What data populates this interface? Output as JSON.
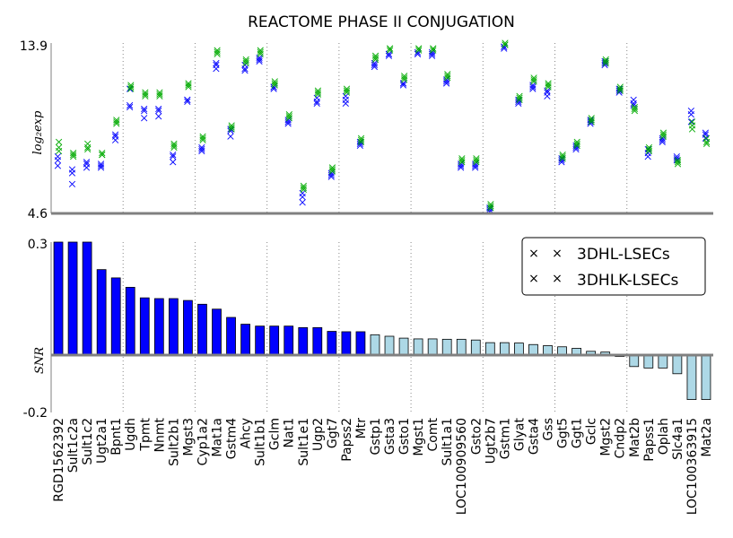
{
  "chart_data": {
    "title": "REACTOME PHASE II CONJUGATION",
    "genes": [
      "RGD1562392",
      "Sult1c2a",
      "Sult1c2",
      "Ugt2a1",
      "Bpnt1",
      "Ugdh",
      "Tpmt",
      "Nnmt",
      "Sult2b1",
      "Mgst3",
      "Cyp1a2",
      "Mat1a",
      "Gstm4",
      "Ahcy",
      "Sult1b1",
      "Gclm",
      "Nat1",
      "Sult1e1",
      "Ugp2",
      "Ggt7",
      "Papss2",
      "Mtr",
      "Gstp1",
      "Gsta3",
      "Gsto1",
      "Mgst1",
      "Comt",
      "Sult1a1",
      "LOC100909560",
      "Gsto2",
      "Ugt2b7",
      "Gstm1",
      "Glyat",
      "Gsta4",
      "Gss",
      "Ggt5",
      "Ggt1",
      "Gclc",
      "Mgst2",
      "Cndp2",
      "Mat2b",
      "Papss1",
      "Oplah",
      "Slc4a1",
      "LOC100363915",
      "Mat2a"
    ],
    "top_panel": {
      "type": "scatter",
      "ylabel": "log₂exp",
      "ylim": [
        4.6,
        13.9
      ],
      "yticks": [
        "4.6",
        "13.9"
      ],
      "legend_position": "bottom-right",
      "series": [
        {
          "name": "3DHL-LSECs",
          "color": "#0000ff",
          "values": [
            [
              7.2,
              7.5,
              7.7
            ],
            [
              6.8,
              6.2,
              7.0
            ],
            [
              7.3,
              7.1,
              7.4
            ],
            [
              7.2,
              7.3,
              7.1
            ],
            [
              8.6,
              8.8,
              8.9
            ],
            [
              10.5,
              10.4,
              11.4
            ],
            [
              10.3,
              9.8,
              10.2
            ],
            [
              9.9,
              10.2,
              10.3
            ],
            [
              7.4,
              7.8,
              7.7
            ],
            [
              10.8,
              10.8,
              10.7
            ],
            [
              8.0,
              8.1,
              8.2
            ],
            [
              12.5,
              12.7,
              12.8
            ],
            [
              8.8,
              9.1,
              9.2
            ],
            [
              12.4,
              12.5,
              12.7
            ],
            [
              12.9,
              13.0,
              13.1
            ],
            [
              11.4,
              11.5,
              11.5
            ],
            [
              9.5,
              9.6,
              9.7
            ],
            [
              5.2,
              5.5,
              5.7
            ],
            [
              10.6,
              10.7,
              10.9
            ],
            [
              6.6,
              6.7,
              6.8
            ],
            [
              10.6,
              10.8,
              11.0
            ],
            [
              8.3,
              8.4,
              8.5
            ],
            [
              12.6,
              12.7,
              12.8
            ],
            [
              13.2,
              13.3,
              13.3
            ],
            [
              11.6,
              11.7,
              11.7
            ],
            [
              13.3,
              13.3,
              13.4
            ],
            [
              13.2,
              13.3,
              13.4
            ],
            [
              11.7,
              11.8,
              11.9
            ],
            [
              7.1,
              7.2,
              7.3
            ],
            [
              7.1,
              7.2,
              7.3
            ],
            [
              4.7,
              4.8,
              4.9
            ],
            [
              13.6,
              13.7,
              13.7
            ],
            [
              10.6,
              10.7,
              10.8
            ],
            [
              11.4,
              11.5,
              11.6
            ],
            [
              11.0,
              11.2,
              11.3
            ],
            [
              7.4,
              7.5,
              7.6
            ],
            [
              8.1,
              8.2,
              8.3
            ],
            [
              9.5,
              9.6,
              9.7
            ],
            [
              12.7,
              12.8,
              12.9
            ],
            [
              11.2,
              11.3,
              11.4
            ],
            [
              10.5,
              10.6,
              10.8
            ],
            [
              7.7,
              7.9,
              8.1
            ],
            [
              8.5,
              8.6,
              8.7
            ],
            [
              7.5,
              7.6,
              7.7
            ],
            [
              9.6,
              10.0,
              10.2
            ],
            [
              8.7,
              8.9,
              9.0
            ]
          ]
        },
        {
          "name": "3DHLK-LSECs",
          "color": "#00aa00",
          "values": [
            [
              8.0,
              8.2,
              8.5
            ],
            [
              7.7,
              7.8,
              7.9
            ],
            [
              8.1,
              8.2,
              8.4
            ],
            [
              7.8,
              7.8,
              7.9
            ],
            [
              9.5,
              9.6,
              9.7
            ],
            [
              11.4,
              11.5,
              11.6
            ],
            [
              11.0,
              11.1,
              11.2
            ],
            [
              11.0,
              11.1,
              11.2
            ],
            [
              8.2,
              8.3,
              8.4
            ],
            [
              11.5,
              11.6,
              11.7
            ],
            [
              8.6,
              8.7,
              8.8
            ],
            [
              13.3,
              13.4,
              13.5
            ],
            [
              9.2,
              9.3,
              9.4
            ],
            [
              12.8,
              12.9,
              13.0
            ],
            [
              13.3,
              13.4,
              13.5
            ],
            [
              11.6,
              11.7,
              11.8
            ],
            [
              9.8,
              9.9,
              10.0
            ],
            [
              5.9,
              6.0,
              6.1
            ],
            [
              11.1,
              11.2,
              11.3
            ],
            [
              6.9,
              7.0,
              7.1
            ],
            [
              11.2,
              11.3,
              11.4
            ],
            [
              8.5,
              8.6,
              8.7
            ],
            [
              13.0,
              13.1,
              13.2
            ],
            [
              13.5,
              13.6,
              13.6
            ],
            [
              11.9,
              12.0,
              12.1
            ],
            [
              13.5,
              13.6,
              13.6
            ],
            [
              13.5,
              13.6,
              13.6
            ],
            [
              12.0,
              12.1,
              12.2
            ],
            [
              7.4,
              7.5,
              7.6
            ],
            [
              7.4,
              7.5,
              7.6
            ],
            [
              4.9,
              5.0,
              5.1
            ],
            [
              13.8,
              13.8,
              13.9
            ],
            [
              10.8,
              10.9,
              11.0
            ],
            [
              11.8,
              11.9,
              12.0
            ],
            [
              11.5,
              11.6,
              11.7
            ],
            [
              7.6,
              7.7,
              7.8
            ],
            [
              8.3,
              8.4,
              8.5
            ],
            [
              9.6,
              9.7,
              9.8
            ],
            [
              12.8,
              12.9,
              13.0
            ],
            [
              11.3,
              11.4,
              11.5
            ],
            [
              10.2,
              10.3,
              10.4
            ],
            [
              8.0,
              8.1,
              8.2
            ],
            [
              8.8,
              8.9,
              9.0
            ],
            [
              7.3,
              7.4,
              7.5
            ],
            [
              9.2,
              9.4,
              9.6
            ],
            [
              8.4,
              8.5,
              8.7
            ]
          ]
        }
      ]
    },
    "bottom_panel": {
      "type": "bar",
      "ylabel": "SNR",
      "ylim": [
        -0.2,
        0.3
      ],
      "yticks": [
        "0.3",
        "-0.2"
      ],
      "highlight_color": "#0000ff",
      "other_color": "#add8e6",
      "highlight_count": 22,
      "values": [
        0.3,
        0.3,
        0.3,
        0.227,
        0.205,
        0.18,
        0.152,
        0.15,
        0.15,
        0.145,
        0.135,
        0.122,
        0.1,
        0.082,
        0.077,
        0.077,
        0.077,
        0.073,
        0.073,
        0.063,
        0.062,
        0.062,
        0.054,
        0.05,
        0.045,
        0.043,
        0.043,
        0.042,
        0.042,
        0.04,
        0.033,
        0.033,
        0.032,
        0.028,
        0.025,
        0.022,
        0.018,
        0.01,
        0.008,
        -0.005,
        -0.04,
        -0.045,
        -0.045,
        -0.065,
        -0.155,
        -0.155
      ]
    },
    "separators_after_index": [
      4,
      9,
      14,
      19,
      24,
      29,
      34,
      39
    ]
  }
}
